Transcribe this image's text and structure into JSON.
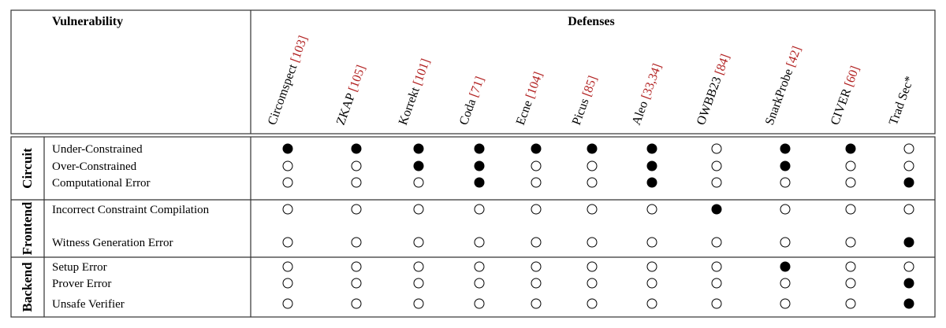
{
  "header": {
    "vulnerability": "Vulnerability",
    "defenses": "Defenses"
  },
  "defenses": [
    {
      "name": "Circomspect",
      "cite": "[103]"
    },
    {
      "name": "ZKAP",
      "cite": "[105]"
    },
    {
      "name": "Korrekt",
      "cite": "[101]"
    },
    {
      "name": "Coda",
      "cite": "[71]"
    },
    {
      "name": "Ecne",
      "cite": "[104]"
    },
    {
      "name": "Picus",
      "cite": "[85]"
    },
    {
      "name": "Aleo",
      "cite": "[33,34]"
    },
    {
      "name": "OWBB23",
      "cite": "[84]"
    },
    {
      "name": "SnarkProbe",
      "cite": "[42]"
    },
    {
      "name": "CIVER",
      "cite": "[60]"
    },
    {
      "name": "Trad Sec*",
      "cite": ""
    }
  ],
  "groups": [
    {
      "name": "Circuit",
      "rows": [
        {
          "label": "Under-Constrained",
          "marks": [
            1,
            1,
            1,
            1,
            1,
            1,
            1,
            0,
            1,
            1,
            0
          ]
        },
        {
          "label": "Over-Constrained",
          "marks": [
            0,
            0,
            1,
            1,
            0,
            0,
            1,
            0,
            1,
            0,
            0
          ]
        },
        {
          "label": "Computational Error",
          "marks": [
            0,
            0,
            0,
            1,
            0,
            0,
            1,
            0,
            0,
            0,
            1
          ]
        }
      ]
    },
    {
      "name": "Frontend",
      "rows": [
        {
          "label": "Incorrect Constraint Compilation",
          "marks": [
            0,
            0,
            0,
            0,
            0,
            0,
            0,
            1,
            0,
            0,
            0
          ]
        },
        {
          "label": "Witness Generation Error",
          "marks": [
            0,
            0,
            0,
            0,
            0,
            0,
            0,
            0,
            0,
            0,
            1
          ]
        }
      ]
    },
    {
      "name": "Backend",
      "rows": [
        {
          "label": "Setup Error",
          "marks": [
            0,
            0,
            0,
            0,
            0,
            0,
            0,
            0,
            1,
            0,
            0
          ]
        },
        {
          "label": "Prover Error",
          "marks": [
            0,
            0,
            0,
            0,
            0,
            0,
            0,
            0,
            0,
            0,
            1
          ]
        },
        {
          "label": "Unsafe Verifier",
          "marks": [
            0,
            0,
            0,
            0,
            0,
            0,
            0,
            0,
            0,
            0,
            1
          ]
        }
      ]
    }
  ]
}
